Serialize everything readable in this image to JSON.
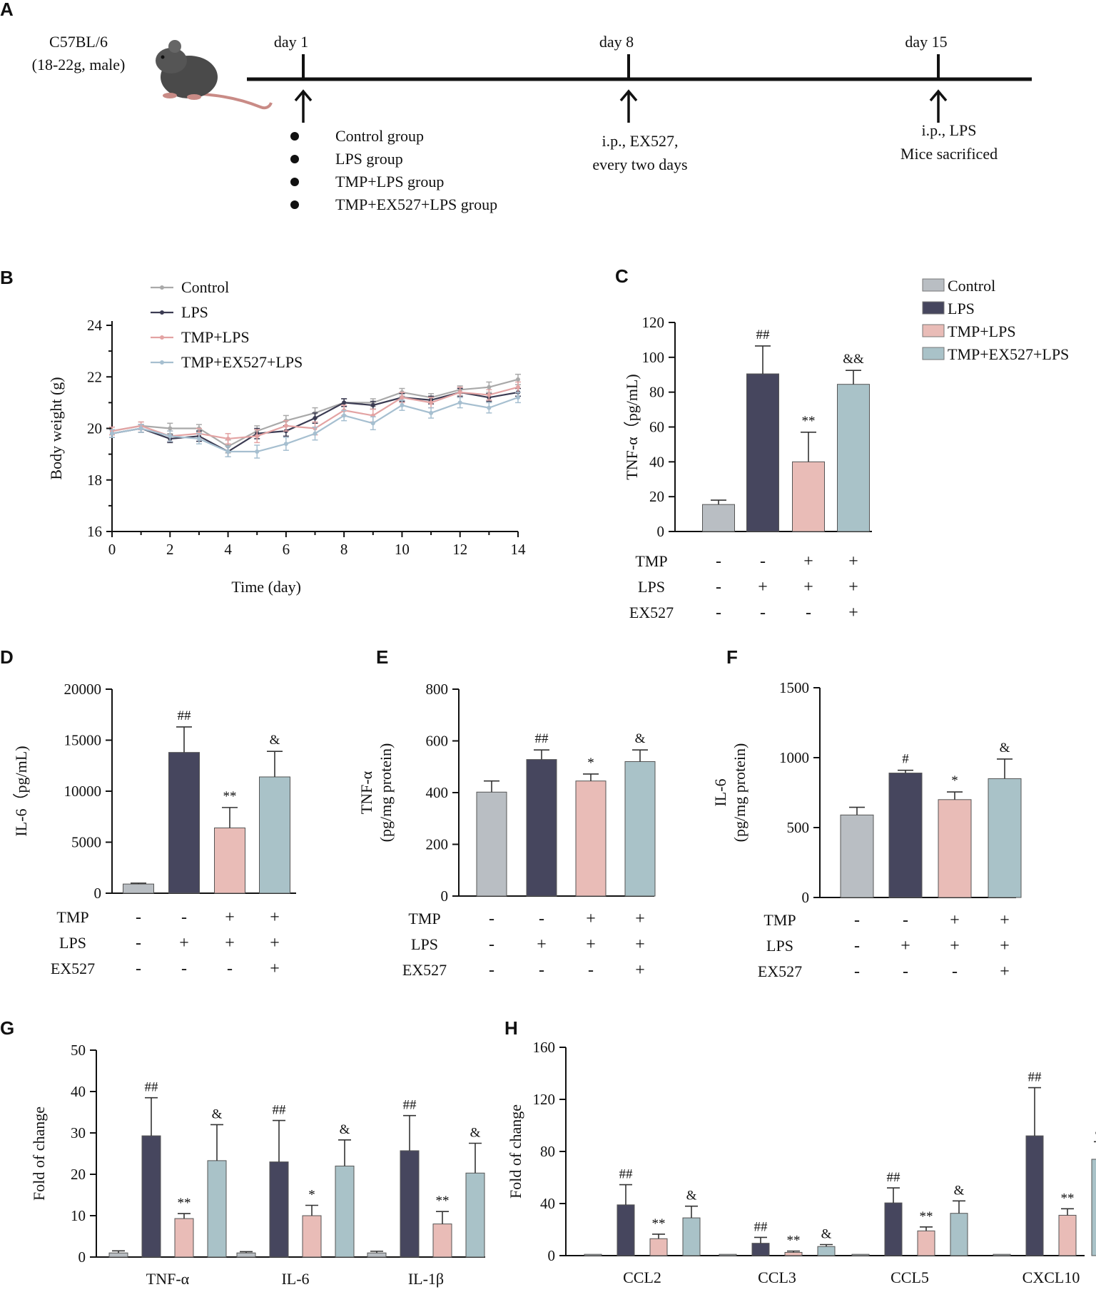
{
  "colors": {
    "control": "#b9bec3",
    "lps": "#46465e",
    "tmp_lps": "#e9bcb7",
    "tmp_ex527_lps": "#a9c2c8",
    "line_control": "#a9a9a9",
    "line_lps": "#3b3b52",
    "line_tmp_lps": "#e3a3a3",
    "line_tmp_ex527_lps": "#a6bfd0"
  },
  "panel_a": {
    "letter": "A",
    "strain": "C57BL/6",
    "strain_detail": "(18-22g, male)",
    "days": [
      {
        "label": "day 1"
      },
      {
        "label": "day 8",
        "note_lines": [
          "i.p., EX527,",
          "every two days"
        ]
      },
      {
        "label": "day 15",
        "note_lines": [
          "i.p., LPS",
          "Mice sacrificed"
        ]
      }
    ],
    "groups": [
      "Control group",
      "LPS group",
      "TMP+LPS group",
      "TMP+EX527+LPS group"
    ],
    "mouse_icon": "mouse-icon",
    "arrow_icon": "up-arrow-icon"
  },
  "treatment_rows": {
    "labels": [
      "TMP",
      "LPS",
      "EX527"
    ],
    "matrix": [
      [
        "-",
        "-",
        "+",
        "+"
      ],
      [
        "-",
        "+",
        "+",
        "+"
      ],
      [
        "-",
        "-",
        "-",
        "+"
      ]
    ]
  },
  "chart_data": [
    {
      "id": "B",
      "letter": "B",
      "type": "line",
      "xlabel": "Time (day)",
      "ylabel": "Body weight (g)",
      "xlim": [
        0,
        14
      ],
      "ylim": [
        16,
        24
      ],
      "xticks": [
        0,
        2,
        4,
        6,
        8,
        10,
        12,
        14
      ],
      "yticks": [
        16,
        18,
        20,
        22,
        24
      ],
      "x": [
        0,
        1,
        2,
        3,
        4,
        5,
        6,
        7,
        8,
        9,
        10,
        11,
        12,
        13,
        14
      ],
      "legend": [
        "Control",
        "LPS",
        "TMP+LPS",
        "TMP+EX527+LPS"
      ],
      "series": [
        {
          "name": "Control",
          "values": [
            19.9,
            20.1,
            20.0,
            20.0,
            19.3,
            19.9,
            20.3,
            20.6,
            21.0,
            21.0,
            21.4,
            21.2,
            21.5,
            21.6,
            21.9
          ],
          "errors": [
            0.15,
            0.15,
            0.2,
            0.15,
            0.25,
            0.2,
            0.2,
            0.2,
            0.15,
            0.15,
            0.15,
            0.15,
            0.15,
            0.2,
            0.2
          ]
        },
        {
          "name": "LPS",
          "values": [
            19.8,
            20.0,
            19.6,
            19.7,
            19.1,
            19.8,
            19.9,
            20.4,
            21.0,
            20.9,
            21.2,
            21.1,
            21.4,
            21.2,
            21.4
          ],
          "errors": [
            0.15,
            0.15,
            0.15,
            0.2,
            0.2,
            0.2,
            0.2,
            0.2,
            0.15,
            0.15,
            0.15,
            0.15,
            0.15,
            0.15,
            0.15
          ]
        },
        {
          "name": "TMP+LPS",
          "values": [
            19.9,
            20.1,
            19.7,
            19.8,
            19.6,
            19.7,
            20.1,
            20.0,
            20.7,
            20.5,
            21.2,
            21.0,
            21.4,
            21.3,
            21.6
          ],
          "errors": [
            0.15,
            0.15,
            0.2,
            0.2,
            0.2,
            0.25,
            0.2,
            0.25,
            0.2,
            0.25,
            0.2,
            0.2,
            0.2,
            0.2,
            0.2
          ]
        },
        {
          "name": "TMP+EX527+LPS",
          "values": [
            19.8,
            20.0,
            19.7,
            19.6,
            19.1,
            19.1,
            19.4,
            19.8,
            20.5,
            20.2,
            20.9,
            20.6,
            21.0,
            20.8,
            21.2
          ],
          "errors": [
            0.15,
            0.15,
            0.2,
            0.2,
            0.2,
            0.25,
            0.25,
            0.25,
            0.2,
            0.25,
            0.2,
            0.2,
            0.2,
            0.2,
            0.2
          ]
        }
      ]
    },
    {
      "id": "C",
      "letter": "C",
      "type": "bar",
      "ylabel": "TNF-α（pg/mL)",
      "ylim": [
        0,
        120
      ],
      "yticks": [
        0,
        20,
        40,
        60,
        80,
        100,
        120
      ],
      "categories": [
        "Control",
        "LPS",
        "TMP+LPS",
        "TMP+EX527+LPS"
      ],
      "values": [
        15.5,
        90.5,
        40,
        84.5
      ],
      "errors": [
        2.5,
        16,
        17,
        8
      ],
      "annotations": [
        "",
        "##",
        "**",
        "&&"
      ],
      "legend": [
        "Control",
        "LPS",
        "TMP+LPS",
        "TMP+EX527+LPS"
      ]
    },
    {
      "id": "D",
      "letter": "D",
      "type": "bar",
      "ylabel": "IL-6（pg/mL)",
      "ylim": [
        0,
        20000
      ],
      "yticks": [
        0,
        5000,
        10000,
        15000,
        20000
      ],
      "categories": [
        "Control",
        "LPS",
        "TMP+LPS",
        "TMP+EX527+LPS"
      ],
      "values": [
        900,
        13800,
        6400,
        11400
      ],
      "errors": [
        80,
        2500,
        2000,
        2500
      ],
      "annotations": [
        "",
        "##",
        "**",
        "&"
      ]
    },
    {
      "id": "E",
      "letter": "E",
      "type": "bar",
      "ylabel_lines": [
        "TNF-α",
        "(pg/mg protein)"
      ],
      "ylim": [
        0,
        800
      ],
      "yticks": [
        0,
        200,
        400,
        600,
        800
      ],
      "categories": [
        "Control",
        "LPS",
        "TMP+LPS",
        "TMP+EX527+LPS"
      ],
      "values": [
        402,
        528,
        445,
        520
      ],
      "errors": [
        43,
        37,
        27,
        45
      ],
      "annotations": [
        "",
        "##",
        "*",
        "&"
      ]
    },
    {
      "id": "F",
      "letter": "F",
      "type": "bar",
      "ylabel_lines": [
        "IL-6",
        "(pg/mg protein)"
      ],
      "ylim": [
        0,
        1500
      ],
      "yticks": [
        0,
        500,
        1000,
        1500
      ],
      "categories": [
        "Control",
        "LPS",
        "TMP+LPS",
        "TMP+EX527+LPS"
      ],
      "values": [
        590,
        890,
        700,
        850
      ],
      "errors": [
        55,
        20,
        55,
        140
      ],
      "annotations": [
        "",
        "#",
        "*",
        "&"
      ]
    },
    {
      "id": "G",
      "letter": "G",
      "type": "bar",
      "ylabel": "Fold of change",
      "ylim": [
        0,
        50
      ],
      "yticks": [
        0,
        10,
        20,
        30,
        40,
        50
      ],
      "categories": [
        "TNF-α",
        "IL-6",
        "IL-1β"
      ],
      "series": [
        {
          "name": "Control",
          "values": [
            1,
            1,
            1
          ],
          "errors": [
            0.5,
            0.3,
            0.4
          ],
          "annotations": [
            "",
            "",
            ""
          ]
        },
        {
          "name": "LPS",
          "values": [
            29.3,
            23,
            25.7
          ],
          "errors": [
            9.2,
            10,
            8.5
          ],
          "annotations": [
            "##",
            "##",
            "##"
          ]
        },
        {
          "name": "TMP+LPS",
          "values": [
            9.3,
            10,
            8
          ],
          "errors": [
            1.2,
            2.5,
            3
          ],
          "annotations": [
            "**",
            "*",
            "**"
          ]
        },
        {
          "name": "TMP+EX527+LPS",
          "values": [
            23.3,
            22,
            20.3
          ],
          "errors": [
            8.7,
            6.3,
            7.2
          ],
          "annotations": [
            "&",
            "&",
            "&"
          ]
        }
      ]
    },
    {
      "id": "H",
      "letter": "H",
      "type": "bar",
      "ylabel": "Fold of change",
      "ylim": [
        0,
        160
      ],
      "yticks": [
        0,
        40,
        80,
        120,
        160
      ],
      "categories": [
        "CCL2",
        "CCL3",
        "CCL5",
        "CXCL10"
      ],
      "series": [
        {
          "name": "Control",
          "values": [
            1,
            1,
            1,
            1
          ],
          "errors": [
            0,
            0,
            0,
            0
          ],
          "annotations": [
            "",
            "",
            "",
            ""
          ]
        },
        {
          "name": "LPS",
          "values": [
            39,
            9.5,
            40.5,
            92
          ],
          "errors": [
            15.5,
            4.5,
            11.5,
            37
          ],
          "annotations": [
            "##",
            "##",
            "##",
            "##"
          ]
        },
        {
          "name": "TMP+LPS",
          "values": [
            13,
            2.5,
            19,
            31
          ],
          "errors": [
            3.5,
            1,
            3,
            5
          ],
          "annotations": [
            "**",
            "**",
            "**",
            "**"
          ]
        },
        {
          "name": "TMP+EX527+LPS",
          "values": [
            29,
            7,
            32.5,
            74
          ],
          "errors": [
            9,
            1.5,
            9.5,
            13.5
          ],
          "annotations": [
            "&",
            "&",
            "&",
            "&"
          ]
        }
      ]
    }
  ]
}
